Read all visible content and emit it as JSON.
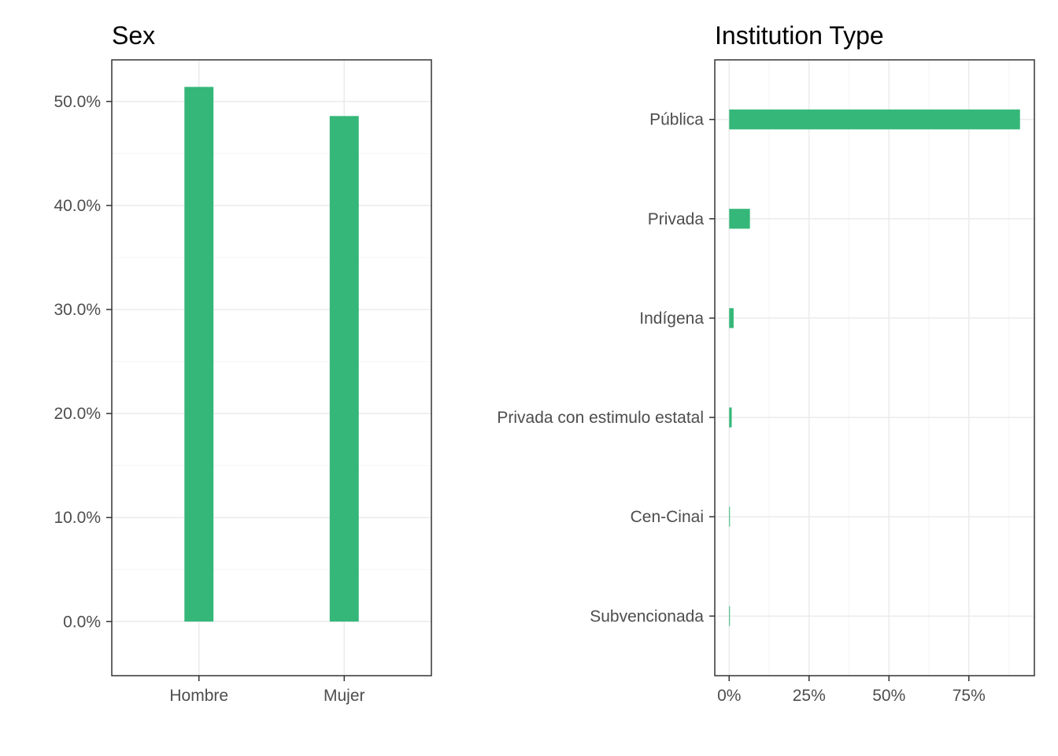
{
  "colors": {
    "bar": "#35b779",
    "grid_major": "#ebebeb",
    "grid_minor": "#f5f5f5",
    "border": "#333333",
    "tick_text": "#4d4d4d"
  },
  "chart_data": [
    {
      "type": "bar",
      "orientation": "vertical",
      "title": "Sex",
      "categories": [
        "Hombre",
        "Mujer"
      ],
      "values": [
        51.4,
        48.6
      ],
      "ylim": [
        -5.2,
        54.0
      ],
      "yticks": [
        0,
        10,
        20,
        30,
        40,
        50
      ],
      "ytick_labels": [
        "0.0%",
        "10.0%",
        "20.0%",
        "30.0%",
        "40.0%",
        "50.0%"
      ],
      "xlabel": "",
      "ylabel": "",
      "grid": true,
      "legend": "none"
    },
    {
      "type": "bar",
      "orientation": "horizontal",
      "title": "Institution Type",
      "categories": [
        "Pública",
        "Privada",
        "Indígena",
        "Privada con estimulo estatal",
        "Cen-Cinai",
        "Subvencionada"
      ],
      "values": [
        91.0,
        6.5,
        1.4,
        0.8,
        0.2,
        0.1
      ],
      "xlim": [
        -4.5,
        95.5
      ],
      "xticks": [
        0,
        25,
        50,
        75
      ],
      "xtick_labels": [
        "0%",
        "25%",
        "50%",
        "75%"
      ],
      "xlabel": "",
      "ylabel": "",
      "grid": true,
      "legend": "none"
    }
  ]
}
